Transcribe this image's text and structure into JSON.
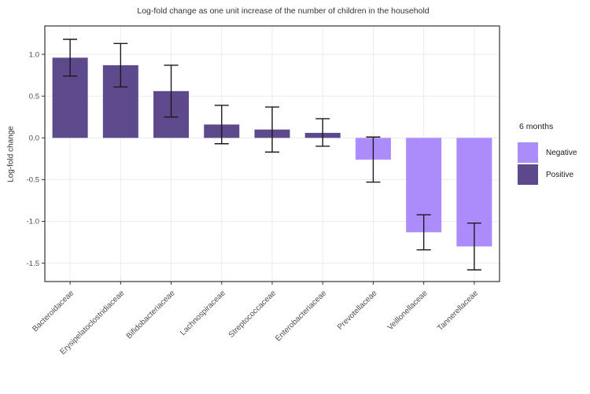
{
  "chart_data": {
    "type": "bar",
    "title": "Log-fold change as one unit increase of the number of children in the household",
    "xlabel": "",
    "ylabel": "Log-fold change",
    "categories": [
      "Bacteroidaceae",
      "Erysipelatoclostridiaceae",
      "Bifidobacteriaceae",
      "Lachnospiraceae",
      "Streptococcaceae",
      "Enterobacteriaceae",
      "Prevotellaceae",
      "Veillonellaceae",
      "Tannerellaceae"
    ],
    "values": [
      0.96,
      0.87,
      0.56,
      0.16,
      0.1,
      0.06,
      -0.26,
      -1.13,
      -1.3
    ],
    "error_low": [
      0.74,
      0.61,
      0.25,
      -0.07,
      -0.17,
      -0.1,
      -0.53,
      -1.34,
      -1.58
    ],
    "error_high": [
      1.18,
      1.13,
      0.87,
      0.39,
      0.37,
      0.23,
      0.01,
      -0.92,
      -1.02
    ],
    "group": [
      "Positive",
      "Positive",
      "Positive",
      "Positive",
      "Positive",
      "Positive",
      "Negative",
      "Negative",
      "Negative"
    ],
    "colors": {
      "Negative": "#AC8CF8",
      "Positive": "#5C4A8C"
    },
    "ylim": [
      -1.72,
      1.34
    ],
    "yticks": [
      1.0,
      0.5,
      0.0,
      -0.5,
      -1.0,
      -1.5
    ],
    "grid": "major-only",
    "grid_color": "#EBEBEB",
    "panel_border_color": "#333333",
    "axis_text_color": "#4D4D4D",
    "errorbar_color": "#1A1A1A",
    "legend": {
      "title": "6 months",
      "position": "right",
      "entries": [
        {
          "label": "Negative",
          "color": "#AC8CF8"
        },
        {
          "label": "Positive",
          "color": "#5C4A8C"
        }
      ]
    }
  }
}
